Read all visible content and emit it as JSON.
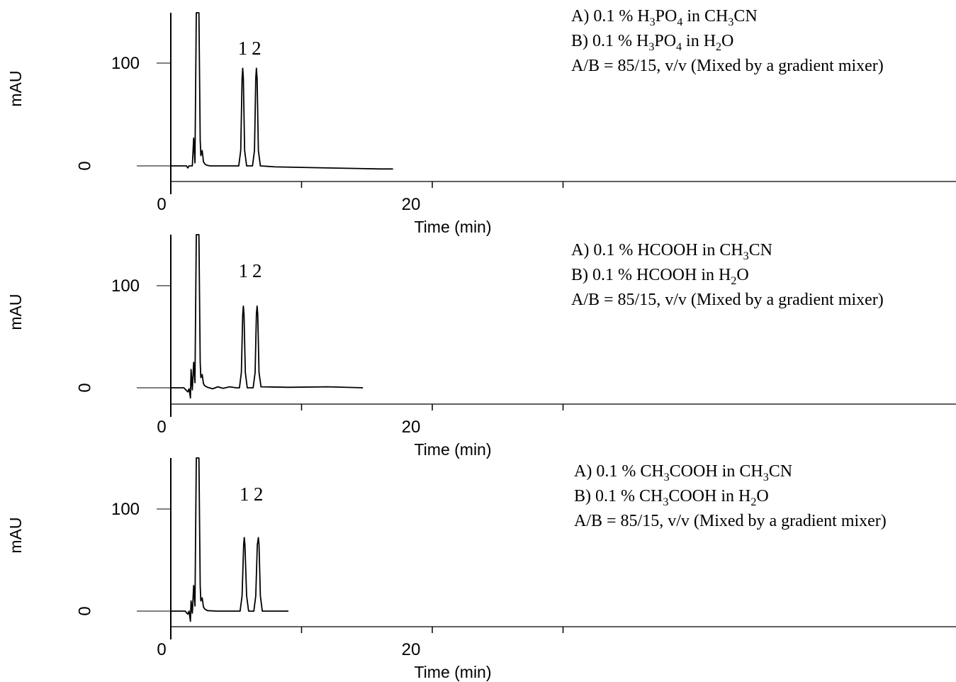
{
  "chart_data": [
    {
      "type": "line",
      "xlabel": "Time (min)",
      "ylabel": "mAU",
      "xticks": [
        0,
        10,
        20,
        30
      ],
      "xtick_labels": [
        "0",
        "",
        "20",
        ""
      ],
      "yticks": [
        0,
        100
      ],
      "ytick_labels": [
        "0",
        "100"
      ],
      "xlim": [
        -2.5,
        30
      ],
      "ylim": [
        -15,
        150
      ],
      "conditions": [
        {
          "prefix": "A) 0.1 % ",
          "parts": [
            [
              "H",
              ""
            ],
            [
              "3",
              "sub"
            ],
            [
              "PO",
              ""
            ],
            [
              "4",
              "sub"
            ],
            [
              " in CH",
              ""
            ],
            [
              "3",
              "sub"
            ],
            [
              "CN",
              ""
            ]
          ]
        },
        {
          "prefix": "B) 0.1 % ",
          "parts": [
            [
              "H",
              ""
            ],
            [
              "3",
              "sub"
            ],
            [
              "PO",
              ""
            ],
            [
              "4",
              "sub"
            ],
            [
              " in H",
              ""
            ],
            [
              "2",
              "sub"
            ],
            [
              "O",
              ""
            ]
          ]
        },
        {
          "prefix": "",
          "parts": [
            [
              "A/B = 85/15, v/v (Mixed by a gradient mixer)",
              ""
            ]
          ]
        }
      ],
      "peak_labels": [
        {
          "label": "1",
          "x": 5.5
        },
        {
          "label": "2",
          "x": 6.55
        }
      ],
      "series": [
        {
          "x": [
            -1.3,
            1.2,
            1.3,
            1.4,
            1.65,
            1.75,
            1.85,
            1.95,
            2.0,
            2.05,
            2.15,
            2.25,
            2.3,
            2.4,
            2.5,
            2.6,
            2.7,
            2.8,
            3.0,
            4.0,
            5.2,
            5.35,
            5.45,
            5.5,
            5.55,
            5.65,
            5.8,
            6.25,
            6.4,
            6.5,
            6.55,
            6.6,
            6.7,
            6.85,
            8.0,
            12.0,
            16.0,
            17.0
          ],
          "y": [
            0,
            0,
            -2,
            0,
            0,
            27,
            3,
            150,
            150,
            150,
            150,
            25,
            10,
            15,
            4,
            2,
            1,
            0.5,
            0,
            0,
            0,
            15,
            85,
            95,
            85,
            15,
            0,
            0,
            15,
            85,
            95,
            85,
            15,
            0,
            -1,
            -2,
            -3,
            -3
          ]
        }
      ]
    },
    {
      "type": "line",
      "xlabel": "Time (min)",
      "ylabel": "mAU",
      "xticks": [
        0,
        10,
        20,
        30
      ],
      "xtick_labels": [
        "0",
        "",
        "20",
        ""
      ],
      "yticks": [
        0,
        100
      ],
      "ytick_labels": [
        "0",
        "100"
      ],
      "xlim": [
        -2.5,
        30
      ],
      "ylim": [
        -15,
        150
      ],
      "conditions": [
        {
          "prefix": "A) 0.1 % ",
          "parts": [
            [
              "HCOOH in CH",
              ""
            ],
            [
              "3",
              "sub"
            ],
            [
              "CN",
              ""
            ]
          ]
        },
        {
          "prefix": "B) 0.1 % ",
          "parts": [
            [
              "HCOOH in H",
              ""
            ],
            [
              "2",
              "sub"
            ],
            [
              "O",
              ""
            ]
          ]
        },
        {
          "prefix": "",
          "parts": [
            [
              "A/B = 85/15, v/v (Mixed by a gradient mixer)",
              ""
            ]
          ]
        }
      ],
      "peak_labels": [
        {
          "label": "1",
          "x": 5.55
        },
        {
          "label": "2",
          "x": 6.6
        }
      ],
      "series": [
        {
          "x": [
            -1.3,
            1.0,
            1.3,
            1.4,
            1.5,
            1.55,
            1.65,
            1.75,
            1.85,
            1.95,
            2.0,
            2.05,
            2.15,
            2.25,
            2.3,
            2.4,
            2.5,
            2.6,
            2.8,
            3.2,
            3.6,
            4.0,
            4.5,
            5.0,
            5.25,
            5.4,
            5.5,
            5.55,
            5.6,
            5.7,
            5.85,
            6.3,
            6.45,
            6.55,
            6.6,
            6.65,
            6.75,
            6.9,
            9.0,
            12.0,
            14.7
          ],
          "y": [
            0,
            0,
            -4,
            -1,
            -10,
            18,
            -2,
            25,
            5,
            150,
            150,
            150,
            150,
            25,
            10,
            13,
            4,
            2,
            0.5,
            -1,
            1,
            -0.5,
            1,
            0,
            0,
            15,
            72,
            80,
            72,
            15,
            0,
            0,
            15,
            72,
            80,
            72,
            15,
            1,
            0.5,
            1,
            0
          ]
        }
      ]
    },
    {
      "type": "line",
      "xlabel": "Time (min)",
      "ylabel": "mAU",
      "xticks": [
        0,
        10,
        20,
        30
      ],
      "xtick_labels": [
        "0",
        "",
        "20",
        ""
      ],
      "yticks": [
        0,
        100
      ],
      "ytick_labels": [
        "0",
        "100"
      ],
      "xlim": [
        -2.5,
        30
      ],
      "ylim": [
        -15,
        150
      ],
      "conditions": [
        {
          "prefix": "A) 0.1 % ",
          "parts": [
            [
              "CH",
              ""
            ],
            [
              "3",
              "sub"
            ],
            [
              "COOH in CH",
              ""
            ],
            [
              "3",
              "sub"
            ],
            [
              "CN",
              ""
            ]
          ]
        },
        {
          "prefix": "B) 0.1 % ",
          "parts": [
            [
              "CH",
              ""
            ],
            [
              "3",
              "sub"
            ],
            [
              "COOH in H",
              ""
            ],
            [
              "2",
              "sub"
            ],
            [
              "O",
              ""
            ]
          ]
        },
        {
          "prefix": "",
          "parts": [
            [
              "A/B = 85/15, v/v (Mixed by a gradient mixer)",
              ""
            ]
          ]
        }
      ],
      "peak_labels": [
        {
          "label": "1",
          "x": 5.62
        },
        {
          "label": "2",
          "x": 6.7
        }
      ],
      "series": [
        {
          "x": [
            -1.3,
            1.1,
            1.3,
            1.4,
            1.5,
            1.55,
            1.65,
            1.75,
            1.85,
            1.95,
            2.0,
            2.05,
            2.15,
            2.25,
            2.3,
            2.4,
            2.5,
            2.6,
            2.8,
            3.5,
            5.3,
            5.45,
            5.57,
            5.62,
            5.67,
            5.8,
            5.95,
            6.35,
            6.5,
            6.62,
            6.7,
            6.75,
            6.85,
            7.0,
            9.0
          ],
          "y": [
            0,
            0,
            -3,
            0,
            -10,
            10,
            -2,
            25,
            5,
            150,
            150,
            150,
            150,
            25,
            10,
            13,
            4,
            2,
            0.5,
            0,
            0,
            15,
            65,
            72,
            65,
            15,
            0,
            0,
            15,
            65,
            72,
            65,
            15,
            0,
            0
          ]
        }
      ]
    }
  ]
}
